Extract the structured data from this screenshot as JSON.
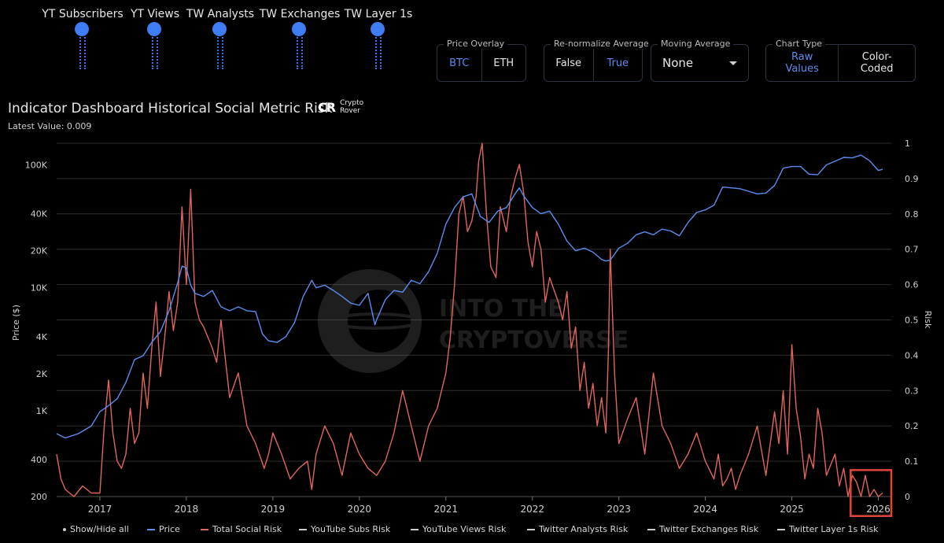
{
  "sliders": [
    {
      "label": "YT Subscribers"
    },
    {
      "label": "YT Views"
    },
    {
      "label": "TW Analysts"
    },
    {
      "label": "TW Exchanges"
    },
    {
      "label": "TW Layer 1s"
    }
  ],
  "controls": {
    "price_overlay": {
      "legend": "Price Overlay",
      "options": [
        "BTC",
        "ETH"
      ],
      "selected": "BTC"
    },
    "renormalize": {
      "legend": "Re-normalize Average",
      "options": [
        "False",
        "True"
      ],
      "selected": "True"
    },
    "moving_average": {
      "legend": "Moving Average",
      "value": "None"
    },
    "chart_type": {
      "legend": "Chart Type",
      "options": [
        "Raw Values",
        "Color-Coded"
      ],
      "selected": "Raw Values"
    }
  },
  "header": {
    "title": "Indicator Dashboard Historical Social Metric Risk",
    "latest": "Latest Value: 0.009",
    "brand_mark": "CR",
    "brand_line1": "Crypto",
    "brand_line2": "Rover"
  },
  "watermark": {
    "line1": "INTO THE",
    "line2": "CRYPTOVERSE"
  },
  "colors": {
    "price": "#5b8def",
    "risk": "#e0665c",
    "grid": "#2e2e2e",
    "highlight": "#e0473a"
  },
  "legend": {
    "show_hide": "Show/Hide all",
    "items": [
      {
        "label": "Price",
        "color": "#5b8def"
      },
      {
        "label": "Total Social Risk",
        "color": "#e0665c"
      },
      {
        "label": "YouTube Subs Risk",
        "color": "#cccccc"
      },
      {
        "label": "YouTube Views Risk",
        "color": "#cccccc"
      },
      {
        "label": "Twitter Analysts Risk",
        "color": "#cccccc"
      },
      {
        "label": "Twitter Exchanges Risk",
        "color": "#cccccc"
      },
      {
        "label": "Twitter Layer 1s Risk",
        "color": "#cccccc"
      }
    ]
  },
  "chart_data": {
    "type": "line",
    "title": "Indicator Dashboard Historical Social Metric Risk",
    "xlabel": "",
    "ylabel_left": "Price ($)",
    "ylabel_right": "Risk",
    "x_ticks": [
      "2017",
      "2018",
      "2019",
      "2020",
      "2021",
      "2022",
      "2023",
      "2024",
      "2025",
      "2026"
    ],
    "y_left_ticks": [
      "100K",
      "40K",
      "20K",
      "10K",
      "4K",
      "2K",
      "1K",
      "400",
      "200"
    ],
    "y_left_tick_values": [
      100000,
      40000,
      20000,
      10000,
      4000,
      2000,
      1000,
      400,
      200
    ],
    "y_left_scale": "log",
    "y_left_lim": [
      200,
      150000
    ],
    "y_right_ticks": [
      "1",
      "0.9",
      "0.8",
      "0.7",
      "0.6",
      "0.5",
      "0.4",
      "0.3",
      "0.2",
      "0.1",
      "0"
    ],
    "y_right_tick_values": [
      1,
      0.9,
      0.8,
      0.7,
      0.6,
      0.5,
      0.4,
      0.3,
      0.2,
      0.1,
      0
    ],
    "y_right_lim": [
      0,
      1
    ],
    "x_lim": [
      2016.5,
      2026.15
    ],
    "highlight_box": {
      "x": [
        2025.68,
        2026.15
      ],
      "y": [
        -0.055,
        0.075
      ]
    },
    "series": [
      {
        "name": "Price",
        "axis": "left",
        "x": [
          2016.5,
          2016.6,
          2016.75,
          2016.9,
          2017.0,
          2017.1,
          2017.2,
          2017.3,
          2017.4,
          2017.5,
          2017.6,
          2017.7,
          2017.8,
          2017.9,
          2017.95,
          2018.0,
          2018.05,
          2018.1,
          2018.2,
          2018.3,
          2018.4,
          2018.5,
          2018.6,
          2018.7,
          2018.8,
          2018.88,
          2018.95,
          2019.05,
          2019.15,
          2019.25,
          2019.35,
          2019.45,
          2019.5,
          2019.6,
          2019.7,
          2019.8,
          2019.9,
          2020.0,
          2020.1,
          2020.18,
          2020.2,
          2020.3,
          2020.4,
          2020.5,
          2020.6,
          2020.7,
          2020.8,
          2020.9,
          2021.0,
          2021.1,
          2021.2,
          2021.3,
          2021.4,
          2021.5,
          2021.6,
          2021.7,
          2021.8,
          2021.85,
          2021.9,
          2022.0,
          2022.1,
          2022.2,
          2022.3,
          2022.4,
          2022.5,
          2022.6,
          2022.7,
          2022.8,
          2022.85,
          2022.9,
          2023.0,
          2023.1,
          2023.2,
          2023.3,
          2023.4,
          2023.5,
          2023.6,
          2023.7,
          2023.8,
          2023.9,
          2024.0,
          2024.1,
          2024.2,
          2024.3,
          2024.4,
          2024.5,
          2024.6,
          2024.7,
          2024.8,
          2024.9,
          2025.0,
          2025.1,
          2025.2,
          2025.3,
          2025.4,
          2025.5,
          2025.6,
          2025.7,
          2025.8,
          2025.9,
          2026.0,
          2026.05
        ],
        "values": [
          650,
          600,
          650,
          750,
          980,
          1100,
          1250,
          1700,
          2600,
          2800,
          3600,
          4400,
          6500,
          11000,
          15000,
          14500,
          10500,
          9000,
          8500,
          9500,
          7000,
          6500,
          7000,
          6500,
          6400,
          4200,
          3700,
          3600,
          4000,
          5200,
          8500,
          11500,
          10000,
          10500,
          9500,
          8500,
          7500,
          7200,
          9000,
          5000,
          5500,
          8000,
          9500,
          9200,
          11500,
          10800,
          13500,
          19000,
          33000,
          45000,
          55000,
          58000,
          38000,
          34000,
          42000,
          45000,
          58000,
          65000,
          56000,
          45000,
          40000,
          42000,
          33000,
          24000,
          20000,
          21000,
          19500,
          17000,
          16500,
          16800,
          21000,
          23000,
          27000,
          28500,
          27000,
          30000,
          29000,
          26500,
          34000,
          41000,
          43000,
          47000,
          66000,
          65000,
          64000,
          61000,
          58000,
          59000,
          68000,
          94000,
          97000,
          97000,
          84000,
          83000,
          100000,
          107000,
          115000,
          114000,
          120000,
          108000,
          90000,
          92000
        ]
      },
      {
        "name": "Total Social Risk",
        "axis": "right",
        "x": [
          2016.5,
          2016.55,
          2016.6,
          2016.7,
          2016.8,
          2016.9,
          2017.0,
          2017.05,
          2017.1,
          2017.15,
          2017.2,
          2017.25,
          2017.3,
          2017.35,
          2017.4,
          2017.45,
          2017.5,
          2017.55,
          2017.6,
          2017.65,
          2017.7,
          2017.75,
          2017.8,
          2017.85,
          2017.9,
          2017.95,
          2018.0,
          2018.05,
          2018.1,
          2018.15,
          2018.2,
          2018.25,
          2018.3,
          2018.35,
          2018.4,
          2018.5,
          2018.6,
          2018.7,
          2018.8,
          2018.9,
          2018.95,
          2019.0,
          2019.1,
          2019.2,
          2019.3,
          2019.4,
          2019.45,
          2019.5,
          2019.6,
          2019.7,
          2019.8,
          2019.9,
          2020.0,
          2020.1,
          2020.2,
          2020.3,
          2020.4,
          2020.5,
          2020.6,
          2020.7,
          2020.8,
          2020.9,
          2021.0,
          2021.05,
          2021.1,
          2021.15,
          2021.2,
          2021.25,
          2021.3,
          2021.35,
          2021.38,
          2021.42,
          2021.47,
          2021.52,
          2021.58,
          2021.63,
          2021.7,
          2021.75,
          2021.8,
          2021.85,
          2021.9,
          2021.95,
          2022.0,
          2022.05,
          2022.1,
          2022.15,
          2022.2,
          2022.3,
          2022.35,
          2022.4,
          2022.45,
          2022.5,
          2022.55,
          2022.6,
          2022.65,
          2022.7,
          2022.75,
          2022.8,
          2022.85,
          2022.88,
          2022.9,
          2022.95,
          2023.0,
          2023.1,
          2023.2,
          2023.3,
          2023.4,
          2023.5,
          2023.6,
          2023.7,
          2023.8,
          2023.9,
          2024.0,
          2024.1,
          2024.15,
          2024.2,
          2024.25,
          2024.3,
          2024.35,
          2024.4,
          2024.5,
          2024.6,
          2024.7,
          2024.8,
          2024.85,
          2024.9,
          2024.95,
          2025.0,
          2025.05,
          2025.1,
          2025.15,
          2025.2,
          2025.25,
          2025.3,
          2025.35,
          2025.4,
          2025.5,
          2025.55,
          2025.6,
          2025.65,
          2025.7,
          2025.75,
          2025.8,
          2025.85,
          2025.9,
          2025.95,
          2026.0,
          2026.05
        ],
        "values": [
          0.12,
          0.05,
          0.02,
          0.0,
          0.03,
          0.01,
          0.01,
          0.2,
          0.33,
          0.18,
          0.1,
          0.08,
          0.12,
          0.25,
          0.15,
          0.18,
          0.35,
          0.25,
          0.42,
          0.55,
          0.34,
          0.45,
          0.58,
          0.47,
          0.55,
          0.82,
          0.6,
          0.87,
          0.55,
          0.5,
          0.48,
          0.45,
          0.42,
          0.38,
          0.5,
          0.28,
          0.35,
          0.2,
          0.15,
          0.08,
          0.12,
          0.18,
          0.12,
          0.05,
          0.08,
          0.1,
          0.02,
          0.12,
          0.2,
          0.15,
          0.06,
          0.18,
          0.12,
          0.08,
          0.06,
          0.1,
          0.18,
          0.3,
          0.2,
          0.1,
          0.2,
          0.25,
          0.35,
          0.45,
          0.6,
          0.8,
          0.85,
          0.75,
          0.78,
          0.85,
          0.95,
          1.0,
          0.8,
          0.65,
          0.62,
          0.82,
          0.75,
          0.85,
          0.9,
          0.94,
          0.86,
          0.72,
          0.65,
          0.75,
          0.7,
          0.55,
          0.62,
          0.55,
          0.5,
          0.58,
          0.42,
          0.48,
          0.3,
          0.38,
          0.25,
          0.32,
          0.2,
          0.28,
          0.18,
          0.42,
          0.7,
          0.35,
          0.15,
          0.22,
          0.28,
          0.12,
          0.35,
          0.2,
          0.15,
          0.08,
          0.12,
          0.18,
          0.1,
          0.05,
          0.12,
          0.03,
          0.05,
          0.08,
          0.02,
          0.06,
          0.12,
          0.2,
          0.06,
          0.24,
          0.15,
          0.3,
          0.12,
          0.43,
          0.25,
          0.17,
          0.05,
          0.12,
          0.08,
          0.25,
          0.18,
          0.06,
          0.12,
          0.03,
          0.08,
          0.0,
          0.06,
          0.04,
          0.0,
          0.06,
          0.0,
          0.02,
          0.0,
          0.01
        ]
      }
    ]
  }
}
